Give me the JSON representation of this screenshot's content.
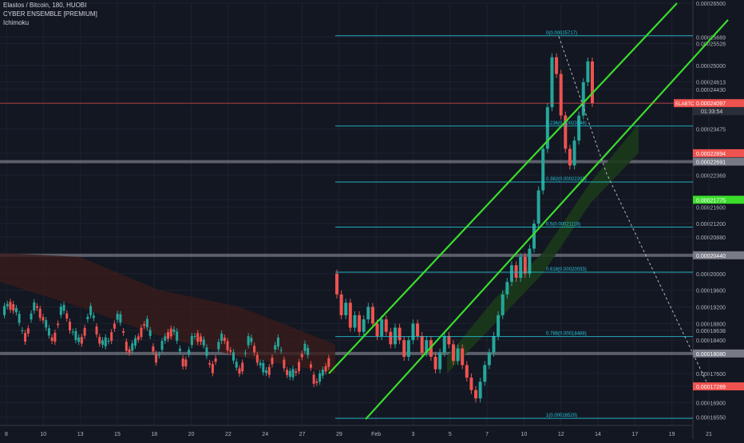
{
  "header": {
    "title": "Elastos / Bitcoin, 180, HUOBI",
    "indicator_1": "CYBER ENSEMBLE [PREMIUM]",
    "indicator_2": "Ichimoku"
  },
  "colors": {
    "background": "#131722",
    "grid": "#1e2230",
    "candle_up": "#26a69a",
    "candle_down": "#ef5350",
    "fib": "#26c6da",
    "channel": "#3bdc2c",
    "cloud_bull": "#1b3a1b",
    "cloud_bear": "#3a1b1b"
  },
  "chart_data": {
    "type": "candlestick",
    "symbol_tag": "ELABTC",
    "countdown": "01:33:54",
    "ylim": [
      0.0001635,
      0.000265
    ],
    "y_ticks": [
      "0.00026500",
      "0.00025689",
      "0.00025528",
      "0.00025000",
      "0.00024613",
      "0.00024430",
      "0.00023475",
      "0.00022894",
      "0.00022691",
      "0.00022369",
      "0.00021775",
      "0.00021600",
      "0.00021200",
      "0.00020880",
      "0.00020440",
      "0.00020000",
      "0.00019600",
      "0.00019200",
      "0.00018800",
      "0.00018638",
      "0.00018400",
      "0.00018080",
      "0.00017600",
      "0.00017289",
      "0.00016900",
      "0.00016550"
    ],
    "x_ticks": [
      "8",
      "10",
      "13",
      "15",
      "18",
      "20",
      "22",
      "24",
      "27",
      "29",
      "Feb",
      "3",
      "5",
      "7",
      "10",
      "12",
      "14",
      "17",
      "19",
      "21"
    ],
    "last_price": "0.00024097",
    "price_tags": [
      {
        "label": "0.00024097",
        "value": 0.00024097,
        "color": "#ef5350"
      },
      {
        "label": "0.00022894",
        "value": 0.00022894,
        "color": "#ef5350"
      },
      {
        "label": "0.00022691",
        "value": 0.00022691,
        "color": "#787b86"
      },
      {
        "label": "0.00021775",
        "value": 0.00021775,
        "color": "#3bdc2c"
      },
      {
        "label": "0.00020440",
        "value": 0.0002044,
        "color": "#787b86"
      },
      {
        "label": "0.00018080",
        "value": 0.0001808,
        "color": "#787b86"
      },
      {
        "label": "0.00017289",
        "value": 0.00017289,
        "color": "#ef5350"
      }
    ],
    "fib_levels": [
      {
        "label": "0(0.00025717)",
        "value": 0.00025717
      },
      {
        "label": "0.236(0.00023548)",
        "value": 0.00023548
      },
      {
        "label": "0.382(0.00022203)",
        "value": 0.00022203
      },
      {
        "label": "0.5(0.00021118)",
        "value": 0.00021118
      },
      {
        "label": "0.618(0.00020033)",
        "value": 0.00020033
      },
      {
        "label": "0.786(0.00018488)",
        "value": 0.00018488
      },
      {
        "label": "1(0.00016520)",
        "value": 0.0001652
      }
    ],
    "horizontal_bands": [
      0.00022691,
      0.0002044,
      0.0001808
    ],
    "series": [
      {
        "x": 0,
        "o": 0.0002,
        "c": 0.000195
      },
      {
        "x": 2,
        "o": 0.000195,
        "c": 0.00019
      },
      {
        "x": 4,
        "o": 0.00019,
        "c": 0.000193
      },
      {
        "x": 6,
        "o": 0.000193,
        "c": 0.000187
      },
      {
        "x": 8,
        "o": 0.000187,
        "c": 0.00019
      },
      {
        "x": 10,
        "o": 0.00019,
        "c": 0.000186
      },
      {
        "x": 12,
        "o": 0.000186,
        "c": 0.000189
      },
      {
        "x": 14,
        "o": 0.000189,
        "c": 0.000192
      },
      {
        "x": 16,
        "o": 0.000192,
        "c": 0.000188
      },
      {
        "x": 18,
        "o": 0.000188,
        "c": 0.000185
      },
      {
        "x": 20,
        "o": 0.000185,
        "c": 0.000189
      },
      {
        "x": 22,
        "o": 0.000189,
        "c": 0.000186
      },
      {
        "x": 24,
        "o": 0.000186,
        "c": 0.000183
      },
      {
        "x": 26,
        "o": 0.000183,
        "c": 0.000187
      },
      {
        "x": 28,
        "o": 0.000187,
        "c": 0.000184
      },
      {
        "x": 30,
        "o": 0.000184,
        "c": 0.00018
      },
      {
        "x": 32,
        "o": 0.00018,
        "c": 0.000184
      },
      {
        "x": 34,
        "o": 0.000184,
        "c": 0.000188
      },
      {
        "x": 36,
        "o": 0.000188,
        "c": 0.000185
      },
      {
        "x": 38,
        "o": 0.000185,
        "c": 0.000181
      },
      {
        "x": 40,
        "o": 0.000181,
        "c": 0.000184
      },
      {
        "x": 42,
        "o": 0.000184,
        "c": 0.00018
      },
      {
        "x": 44,
        "o": 0.00018,
        "c": 0.000177
      },
      {
        "x": 46,
        "o": 0.000177,
        "c": 0.000181
      },
      {
        "x": 48,
        "o": 0.000181,
        "c": 0.000185
      },
      {
        "x": 50,
        "o": 0.000185,
        "c": 0.000183
      },
      {
        "x": 52,
        "o": 0.000183,
        "c": 0.000179
      },
      {
        "x": 54,
        "o": 0.000179,
        "c": 0.000182
      },
      {
        "x": 56,
        "o": 0.000182,
        "c": 0.000178
      },
      {
        "x": 58,
        "o": 0.000178,
        "c": 0.000175
      },
      {
        "x": 60,
        "o": 0.000175,
        "c": 0.000172
      },
      {
        "x": 62,
        "o": 0.000172,
        "c": 0.00017
      },
      {
        "x": 64,
        "o": 0.00017,
        "c": 0.000174
      },
      {
        "x": 66,
        "o": 0.000174,
        "c": 0.000178
      },
      {
        "x": 68,
        "o": 0.000178,
        "c": 0.000181
      },
      {
        "x": 70,
        "o": 0.000181,
        "c": 0.000185
      },
      {
        "x": 72,
        "o": 0.000185,
        "c": 0.00019
      },
      {
        "x": 74,
        "o": 0.00019,
        "c": 0.000195
      },
      {
        "x": 76,
        "o": 0.000195,
        "c": 0.000198
      },
      {
        "x": 78,
        "o": 0.000198,
        "c": 0.000202
      },
      {
        "x": 80,
        "o": 0.000202,
        "c": 0.000199
      },
      {
        "x": 82,
        "o": 0.000199,
        "c": 0.000204
      },
      {
        "x": 84,
        "o": 0.000204,
        "c": 0.0002
      },
      {
        "x": 86,
        "o": 0.0002,
        "c": 0.000206
      },
      {
        "x": 88,
        "o": 0.000206,
        "c": 0.000212
      },
      {
        "x": 90,
        "o": 0.000212,
        "c": 0.00022
      },
      {
        "x": 92,
        "o": 0.00022,
        "c": 0.00023
      },
      {
        "x": 94,
        "o": 0.00023,
        "c": 0.00024
      },
      {
        "x": 96,
        "o": 0.00024,
        "c": 0.000252
      },
      {
        "x": 98,
        "o": 0.000252,
        "c": 0.000248
      },
      {
        "x": 100,
        "o": 0.000248,
        "c": 0.000238
      },
      {
        "x": 102,
        "o": 0.000238,
        "c": 0.00023
      },
      {
        "x": 104,
        "o": 0.00023,
        "c": 0.000226
      },
      {
        "x": 106,
        "o": 0.000226,
        "c": 0.000232
      },
      {
        "x": 108,
        "o": 0.000232,
        "c": 0.000238
      },
      {
        "x": 110,
        "o": 0.000238,
        "c": 0.000246
      },
      {
        "x": 112,
        "o": 0.000246,
        "c": 0.000251
      },
      {
        "x": 114,
        "o": 0.000251,
        "c": 0.000241
      }
    ]
  }
}
